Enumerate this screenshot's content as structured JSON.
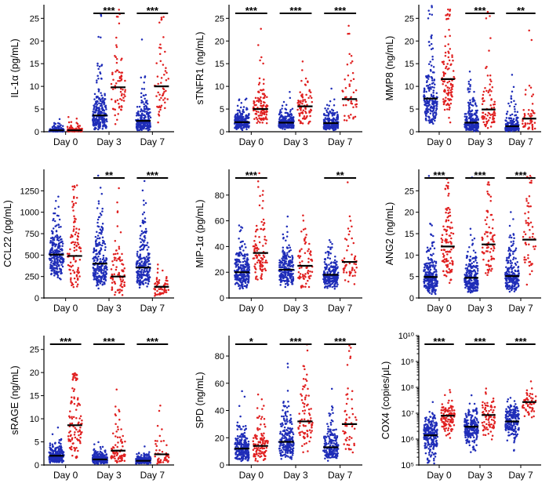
{
  "colors": {
    "group_a": "#1f2db8",
    "group_b": "#e02020",
    "axis": "#000000",
    "median": "#000000"
  },
  "chart_data": [
    {
      "id": "il1a",
      "type": "scatter",
      "scale": "linear",
      "ylabel": "IL-1α (pg/mL)",
      "ylim": [
        0,
        28
      ],
      "yticks": [
        0,
        5,
        10,
        15,
        20,
        25
      ],
      "ytick_labels": [
        "0",
        "5",
        "10",
        "15",
        "20",
        "25"
      ],
      "categories": [
        "Day 0",
        "Day 3",
        "Day 7"
      ],
      "series": [
        {
          "name": "group_a",
          "color": "#1f2db8"
        },
        {
          "name": "group_b",
          "color": "#e02020"
        }
      ],
      "groups": [
        {
          "category": "Day 0",
          "a": {
            "n": 150,
            "median": 0.3,
            "spread": 0.9,
            "max": 27.5
          },
          "b": {
            "n": 90,
            "median": 0.3,
            "spread": 1.0,
            "max": 20.5
          }
        },
        {
          "category": "Day 3",
          "a": {
            "n": 230,
            "median": 3.6,
            "spread": 0.75,
            "max": 27
          },
          "b": {
            "n": 70,
            "median": 9.8,
            "spread": 0.55,
            "max": 27
          }
        },
        {
          "category": "Day 7",
          "a": {
            "n": 220,
            "median": 2.4,
            "spread": 0.8,
            "max": 26
          },
          "b": {
            "n": 55,
            "median": 10.0,
            "spread": 0.6,
            "max": 27
          }
        }
      ],
      "significance": [
        {
          "category": "Day 0",
          "label": ""
        },
        {
          "category": "Day 3",
          "label": "***"
        },
        {
          "category": "Day 7",
          "label": "***"
        }
      ]
    },
    {
      "id": "stnfr1",
      "type": "scatter",
      "scale": "linear",
      "ylabel": "sTNFR1 (ng/mL)",
      "ylim": [
        0,
        28
      ],
      "yticks": [
        0,
        5,
        10,
        15,
        20,
        25
      ],
      "ytick_labels": [
        "0",
        "5",
        "10",
        "15",
        "20",
        "25"
      ],
      "categories": [
        "Day 0",
        "Day 3",
        "Day 7"
      ],
      "series": [
        {
          "name": "group_a",
          "color": "#1f2db8"
        },
        {
          "name": "group_b",
          "color": "#e02020"
        }
      ],
      "groups": [
        {
          "category": "Day 0",
          "a": {
            "n": 230,
            "median": 2.1,
            "spread": 0.55,
            "max": 21
          },
          "b": {
            "n": 110,
            "median": 5.0,
            "spread": 0.55,
            "max": 24
          }
        },
        {
          "category": "Day 3",
          "a": {
            "n": 220,
            "median": 2.0,
            "spread": 0.5,
            "max": 20
          },
          "b": {
            "n": 80,
            "median": 5.6,
            "spread": 0.55,
            "max": 24
          }
        },
        {
          "category": "Day 7",
          "a": {
            "n": 210,
            "median": 1.9,
            "spread": 0.55,
            "max": 20
          },
          "b": {
            "n": 45,
            "median": 7.2,
            "spread": 0.6,
            "max": 25
          }
        }
      ],
      "significance": [
        {
          "category": "Day 0",
          "label": "***"
        },
        {
          "category": "Day 3",
          "label": "***"
        },
        {
          "category": "Day 7",
          "label": "***"
        }
      ]
    },
    {
      "id": "mmp8",
      "type": "scatter",
      "scale": "linear",
      "ylabel": "MMP8 (ng/mL)",
      "ylim": [
        0,
        28
      ],
      "yticks": [
        0,
        5,
        10,
        15,
        20,
        25
      ],
      "ytick_labels": [
        "0",
        "5",
        "10",
        "15",
        "20",
        "25"
      ],
      "categories": [
        "Day 0",
        "Day 3",
        "Day 7"
      ],
      "series": [
        {
          "name": "group_a",
          "color": "#1f2db8"
        },
        {
          "name": "group_b",
          "color": "#e02020"
        }
      ],
      "groups": [
        {
          "category": "Day 0",
          "a": {
            "n": 200,
            "median": 7.3,
            "spread": 0.6,
            "max": 28
          },
          "b": {
            "n": 110,
            "median": 11.6,
            "spread": 0.55,
            "max": 27
          }
        },
        {
          "category": "Day 3",
          "a": {
            "n": 220,
            "median": 2.0,
            "spread": 0.85,
            "max": 27
          },
          "b": {
            "n": 80,
            "median": 4.9,
            "spread": 0.75,
            "max": 27
          }
        },
        {
          "category": "Day 7",
          "a": {
            "n": 200,
            "median": 1.2,
            "spread": 0.9,
            "max": 27
          },
          "b": {
            "n": 50,
            "median": 2.9,
            "spread": 0.8,
            "max": 27
          }
        }
      ],
      "significance": [
        {
          "category": "Day 0",
          "label": ""
        },
        {
          "category": "Day 3",
          "label": "***"
        },
        {
          "category": "Day 7",
          "label": "**"
        }
      ]
    },
    {
      "id": "ccl22",
      "type": "scatter",
      "scale": "linear",
      "ylabel": "CCL22 (pg/mL)",
      "ylim": [
        0,
        1500
      ],
      "yticks": [
        0,
        250,
        500,
        750,
        1000,
        1250
      ],
      "ytick_labels": [
        "0",
        "250",
        "500",
        "750",
        "1000",
        "1250"
      ],
      "categories": [
        "Day 0",
        "Day 3",
        "Day 7"
      ],
      "series": [
        {
          "name": "group_a",
          "color": "#1f2db8"
        },
        {
          "name": "group_b",
          "color": "#e02020"
        }
      ],
      "groups": [
        {
          "category": "Day 0",
          "a": {
            "n": 230,
            "median": 505,
            "spread": 0.35,
            "max": 1400
          },
          "b": {
            "n": 100,
            "median": 490,
            "spread": 0.55,
            "max": 1350
          }
        },
        {
          "category": "Day 3",
          "a": {
            "n": 230,
            "median": 400,
            "spread": 0.45,
            "max": 1480
          },
          "b": {
            "n": 80,
            "median": 250,
            "spread": 0.75,
            "max": 1350
          }
        },
        {
          "category": "Day 7",
          "a": {
            "n": 220,
            "median": 355,
            "spread": 0.5,
            "max": 1400
          },
          "b": {
            "n": 55,
            "median": 130,
            "spread": 0.65,
            "max": 1000
          }
        }
      ],
      "significance": [
        {
          "category": "Day 0",
          "label": ""
        },
        {
          "category": "Day 3",
          "label": "**"
        },
        {
          "category": "Day 7",
          "label": "***"
        }
      ]
    },
    {
      "id": "mip1a",
      "type": "scatter",
      "scale": "linear",
      "ylabel": "MIP-1α (pg/mL)",
      "ylim": [
        0,
        100
      ],
      "yticks": [
        0,
        20,
        40,
        60,
        80
      ],
      "ytick_labels": [
        "0",
        "20",
        "40",
        "60",
        "80"
      ],
      "categories": [
        "Day 0",
        "Day 3",
        "Day 7"
      ],
      "series": [
        {
          "name": "group_a",
          "color": "#1f2db8"
        },
        {
          "name": "group_b",
          "color": "#e02020"
        }
      ],
      "groups": [
        {
          "category": "Day 0",
          "a": {
            "n": 230,
            "median": 20,
            "spread": 0.4,
            "max": 98
          },
          "b": {
            "n": 100,
            "median": 35,
            "spread": 0.45,
            "max": 98
          }
        },
        {
          "category": "Day 3",
          "a": {
            "n": 230,
            "median": 22,
            "spread": 0.35,
            "max": 98
          },
          "b": {
            "n": 75,
            "median": 25,
            "spread": 0.45,
            "max": 90
          }
        },
        {
          "category": "Day 7",
          "a": {
            "n": 210,
            "median": 18,
            "spread": 0.38,
            "max": 92
          },
          "b": {
            "n": 50,
            "median": 28,
            "spread": 0.5,
            "max": 90
          }
        }
      ],
      "significance": [
        {
          "category": "Day 0",
          "label": "***"
        },
        {
          "category": "Day 3",
          "label": ""
        },
        {
          "category": "Day 7",
          "label": "**"
        }
      ]
    },
    {
      "id": "ang2",
      "type": "scatter",
      "scale": "linear",
      "ylabel": "ANG2 (ng/mL)",
      "ylim": [
        0,
        30
      ],
      "yticks": [
        0,
        5,
        10,
        15,
        20,
        25
      ],
      "ytick_labels": [
        "0",
        "5",
        "10",
        "15",
        "20",
        "25"
      ],
      "categories": [
        "Day 0",
        "Day 3",
        "Day 7"
      ],
      "series": [
        {
          "name": "group_a",
          "color": "#1f2db8"
        },
        {
          "name": "group_b",
          "color": "#e02020"
        }
      ],
      "groups": [
        {
          "category": "Day 0",
          "a": {
            "n": 230,
            "median": 4.9,
            "spread": 0.55,
            "max": 29
          },
          "b": {
            "n": 110,
            "median": 12.0,
            "spread": 0.5,
            "max": 28
          }
        },
        {
          "category": "Day 3",
          "a": {
            "n": 230,
            "median": 4.7,
            "spread": 0.55,
            "max": 29
          },
          "b": {
            "n": 80,
            "median": 12.5,
            "spread": 0.5,
            "max": 28
          }
        },
        {
          "category": "Day 7",
          "a": {
            "n": 210,
            "median": 5.1,
            "spread": 0.55,
            "max": 28
          },
          "b": {
            "n": 55,
            "median": 13.6,
            "spread": 0.5,
            "max": 29
          }
        }
      ],
      "significance": [
        {
          "category": "Day 0",
          "label": "***"
        },
        {
          "category": "Day 3",
          "label": "***"
        },
        {
          "category": "Day 7",
          "label": "***"
        }
      ]
    },
    {
      "id": "srage",
      "type": "scatter",
      "scale": "linear",
      "ylabel": "sRAGE (ng/mL)",
      "ylim": [
        0,
        28
      ],
      "yticks": [
        0,
        5,
        10,
        15,
        20,
        25
      ],
      "ytick_labels": [
        "0",
        "5",
        "10",
        "15",
        "20",
        "25"
      ],
      "categories": [
        "Day 0",
        "Day 3",
        "Day 7"
      ],
      "series": [
        {
          "name": "group_a",
          "color": "#1f2db8"
        },
        {
          "name": "group_b",
          "color": "#e02020"
        }
      ],
      "groups": [
        {
          "category": "Day 0",
          "a": {
            "n": 230,
            "median": 2.0,
            "spread": 0.55,
            "max": 27
          },
          "b": {
            "n": 110,
            "median": 8.6,
            "spread": 0.7,
            "max": 20
          }
        },
        {
          "category": "Day 3",
          "a": {
            "n": 220,
            "median": 1.2,
            "spread": 0.6,
            "max": 16
          },
          "b": {
            "n": 80,
            "median": 3.1,
            "spread": 0.75,
            "max": 17
          }
        },
        {
          "category": "Day 7",
          "a": {
            "n": 200,
            "median": 0.9,
            "spread": 0.55,
            "max": 8
          },
          "b": {
            "n": 50,
            "median": 2.3,
            "spread": 0.8,
            "max": 16
          }
        }
      ],
      "significance": [
        {
          "category": "Day 0",
          "label": "***"
        },
        {
          "category": "Day 3",
          "label": "***"
        },
        {
          "category": "Day 7",
          "label": "***"
        }
      ]
    },
    {
      "id": "spd",
      "type": "scatter",
      "scale": "linear",
      "ylabel": "SPD (ng/mL)",
      "ylim": [
        0,
        95
      ],
      "yticks": [
        0,
        20,
        40,
        60,
        80
      ],
      "ytick_labels": [
        "0",
        "20",
        "40",
        "60",
        "80"
      ],
      "categories": [
        "Day 0",
        "Day 3",
        "Day 7"
      ],
      "series": [
        {
          "name": "group_a",
          "color": "#1f2db8"
        },
        {
          "name": "group_b",
          "color": "#e02020"
        }
      ],
      "groups": [
        {
          "category": "Day 0",
          "a": {
            "n": 230,
            "median": 12,
            "spread": 0.55,
            "max": 62
          },
          "b": {
            "n": 110,
            "median": 14,
            "spread": 0.6,
            "max": 80
          }
        },
        {
          "category": "Day 3",
          "a": {
            "n": 220,
            "median": 17,
            "spread": 0.55,
            "max": 78
          },
          "b": {
            "n": 80,
            "median": 32,
            "spread": 0.55,
            "max": 90
          }
        },
        {
          "category": "Day 7",
          "a": {
            "n": 200,
            "median": 13,
            "spread": 0.55,
            "max": 80
          },
          "b": {
            "n": 50,
            "median": 30,
            "spread": 0.6,
            "max": 88
          }
        }
      ],
      "significance": [
        {
          "category": "Day 0",
          "label": "*"
        },
        {
          "category": "Day 3",
          "label": "***"
        },
        {
          "category": "Day 7",
          "label": "***"
        }
      ]
    },
    {
      "id": "cox4",
      "type": "scatter",
      "scale": "log",
      "ylabel": "COX4 (copies/μL)",
      "ylim": [
        100000,
        10000000000
      ],
      "yticks": [
        100000,
        1000000,
        10000000,
        100000000,
        1000000000,
        10000000000
      ],
      "ytick_labels": [
        "10⁵",
        "10⁶",
        "10⁷",
        "10⁸",
        "10⁹",
        "10¹⁰"
      ],
      "categories": [
        "Day 0",
        "Day 3",
        "Day 7"
      ],
      "series": [
        {
          "name": "group_a",
          "color": "#1f2db8"
        },
        {
          "name": "group_b",
          "color": "#e02020"
        }
      ],
      "groups": [
        {
          "category": "Day 0",
          "a": {
            "n": 230,
            "median": 1400000,
            "spread": 0.45,
            "max": 200000000
          },
          "b": {
            "n": 110,
            "median": 8000000,
            "spread": 0.35,
            "max": 150000000
          }
        },
        {
          "category": "Day 3",
          "a": {
            "n": 220,
            "median": 3000000,
            "spread": 0.4,
            "max": 150000000
          },
          "b": {
            "n": 80,
            "median": 8500000,
            "spread": 0.45,
            "max": 600000000
          }
        },
        {
          "category": "Day 7",
          "a": {
            "n": 200,
            "median": 4800000,
            "spread": 0.35,
            "max": 100000000
          },
          "b": {
            "n": 50,
            "median": 27000000,
            "spread": 0.35,
            "max": 700000000
          }
        }
      ],
      "significance": [
        {
          "category": "Day 0",
          "label": "***"
        },
        {
          "category": "Day 3",
          "label": "***"
        },
        {
          "category": "Day 7",
          "label": "***"
        }
      ]
    }
  ]
}
